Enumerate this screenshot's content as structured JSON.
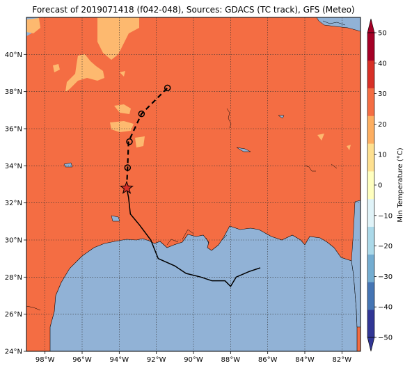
{
  "title": "Forecast of 2019071418 (f042-048), Sources: GDACS (TC track), GFS (Meteo)",
  "map": {
    "lon_range": [
      -99,
      -81
    ],
    "lat_range": [
      24,
      42
    ],
    "lon_ticks": [
      {
        "value": -98,
        "label": "98°W"
      },
      {
        "value": -96,
        "label": "96°W"
      },
      {
        "value": -94,
        "label": "94°W"
      },
      {
        "value": -92,
        "label": "92°W"
      },
      {
        "value": -90,
        "label": "90°W"
      },
      {
        "value": -88,
        "label": "88°W"
      },
      {
        "value": -86,
        "label": "86°W"
      },
      {
        "value": -84,
        "label": "84°W"
      },
      {
        "value": -82,
        "label": "82°W"
      }
    ],
    "lat_ticks": [
      {
        "value": 24,
        "label": "24°N"
      },
      {
        "value": 26,
        "label": "26°N"
      },
      {
        "value": 28,
        "label": "28°N"
      },
      {
        "value": 30,
        "label": "30°N"
      },
      {
        "value": 32,
        "label": "32°N"
      },
      {
        "value": 34,
        "label": "34°N"
      },
      {
        "value": 36,
        "label": "36°N"
      },
      {
        "value": 38,
        "label": "38°N"
      },
      {
        "value": 40,
        "label": "40°N"
      }
    ],
    "colors": {
      "land": "#f46d43",
      "water": "#91b2d6",
      "warm_patch": "#fdb96f"
    }
  },
  "track": {
    "past": [
      [
        -86.4,
        28.5
      ],
      [
        -87.0,
        28.3
      ],
      [
        -87.7,
        28.0
      ],
      [
        -88.0,
        27.5
      ],
      [
        -88.3,
        27.8
      ],
      [
        -89.0,
        27.8
      ],
      [
        -89.6,
        28.0
      ],
      [
        -90.4,
        28.2
      ],
      [
        -91.0,
        28.6
      ],
      [
        -91.9,
        29.0
      ],
      [
        -92.3,
        30.0
      ],
      [
        -92.9,
        30.8
      ],
      [
        -93.4,
        31.4
      ],
      [
        -93.5,
        32.3
      ],
      [
        -93.6,
        32.8
      ]
    ],
    "current": [
      -93.6,
      32.8
    ],
    "forecast": [
      [
        -93.6,
        32.8
      ],
      [
        -93.55,
        33.9
      ],
      [
        -93.5,
        35.3
      ],
      [
        -92.8,
        36.8
      ],
      [
        -91.4,
        38.2
      ]
    ],
    "forecast_points": [
      [
        -93.55,
        33.9
      ],
      [
        -93.45,
        35.3
      ],
      [
        -92.8,
        36.8
      ],
      [
        -91.4,
        38.2
      ]
    ]
  },
  "colorbar": {
    "label": "Min Temperature (°C)",
    "ticks": [
      "50",
      "40",
      "30",
      "20",
      "10",
      "0",
      "-10",
      "-20",
      "-30",
      "-40",
      "-50"
    ],
    "min": -50,
    "max": 50,
    "bands": [
      "#313695",
      "#4575b4",
      "#74add1",
      "#abd9e9",
      "#e0f3f8",
      "#ffffbf",
      "#fee090",
      "#fdae61",
      "#f46d43",
      "#d73027",
      "#a50026"
    ]
  }
}
